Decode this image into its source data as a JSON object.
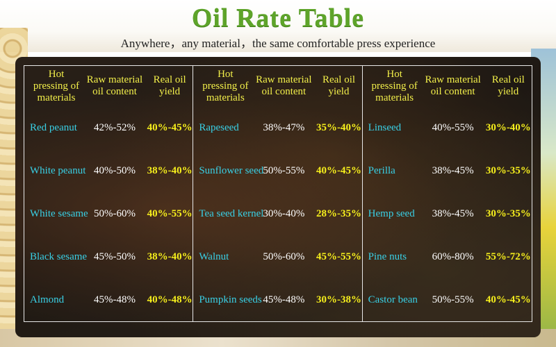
{
  "title": "Oil Rate Table",
  "subtitle": "Anywhere，any material，the same comfortable press experience",
  "headers": {
    "material": "Hot pressing of materials",
    "content": "Raw material oil content",
    "yield": "Real oil yield"
  },
  "groups": [
    {
      "rows": [
        {
          "name": "Red peanut",
          "content": "42%-52%",
          "yield": "40%-45%"
        },
        {
          "name": "White peanut",
          "content": "40%-50%",
          "yield": "38%-40%"
        },
        {
          "name": "White sesame",
          "content": "50%-60%",
          "yield": "40%-55%"
        },
        {
          "name": "Black sesame",
          "content": "45%-50%",
          "yield": "38%-40%"
        },
        {
          "name": "Almond",
          "content": "45%-48%",
          "yield": "40%-48%"
        }
      ]
    },
    {
      "rows": [
        {
          "name": "Rapeseed",
          "content": "38%-47%",
          "yield": "35%-40%"
        },
        {
          "name": "Sunflower seed",
          "content": "50%-55%",
          "yield": "40%-45%"
        },
        {
          "name": "Tea seed kernel",
          "content": "30%-40%",
          "yield": "28%-35%"
        },
        {
          "name": "Walnut",
          "content": "50%-60%",
          "yield": "45%-55%"
        },
        {
          "name": "Pumpkin seeds",
          "content": "45%-48%",
          "yield": "30%-38%"
        }
      ]
    },
    {
      "rows": [
        {
          "name": "Linseed",
          "content": "40%-55%",
          "yield": "30%-40%"
        },
        {
          "name": "Perilla",
          "content": "38%-45%",
          "yield": "30%-35%"
        },
        {
          "name": "Hemp seed",
          "content": "38%-45%",
          "yield": "30%-35%"
        },
        {
          "name": "Pine nuts",
          "content": "60%-80%",
          "yield": "55%-72%"
        },
        {
          "name": "Castor bean",
          "content": "50%-55%",
          "yield": "40%-45%"
        }
      ]
    }
  ],
  "colors": {
    "title": "#5ea42a",
    "header": "#f2ef4a",
    "material_name": "#39d0e6",
    "oil_content": "#ffffff",
    "oil_yield": "#f6ef1c"
  }
}
